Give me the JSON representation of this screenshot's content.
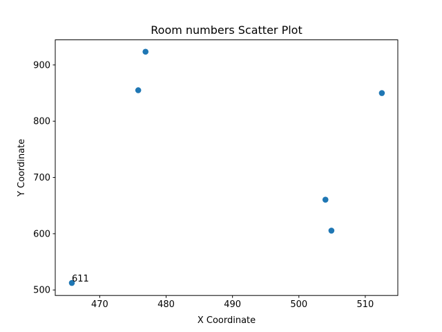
{
  "chart_data": {
    "type": "scatter",
    "title": "Room numbers Scatter Plot",
    "xlabel": "X Coordinate",
    "ylabel": "Y Coordinate",
    "xlim": [
      463.3,
      514.9
    ],
    "ylim": [
      490.2,
      944.6
    ],
    "xticks": [
      470,
      480,
      490,
      500,
      510
    ],
    "yticks": [
      500,
      600,
      700,
      800,
      900
    ],
    "grid": false,
    "marker_color": "#1f77b4",
    "points": [
      {
        "x": 465.8,
        "y": 512.5,
        "label": "611"
      },
      {
        "x": 475.8,
        "y": 855.0
      },
      {
        "x": 476.9,
        "y": 923.5
      },
      {
        "x": 504.0,
        "y": 660.5
      },
      {
        "x": 504.9,
        "y": 605.5
      },
      {
        "x": 512.5,
        "y": 850.0
      }
    ]
  }
}
